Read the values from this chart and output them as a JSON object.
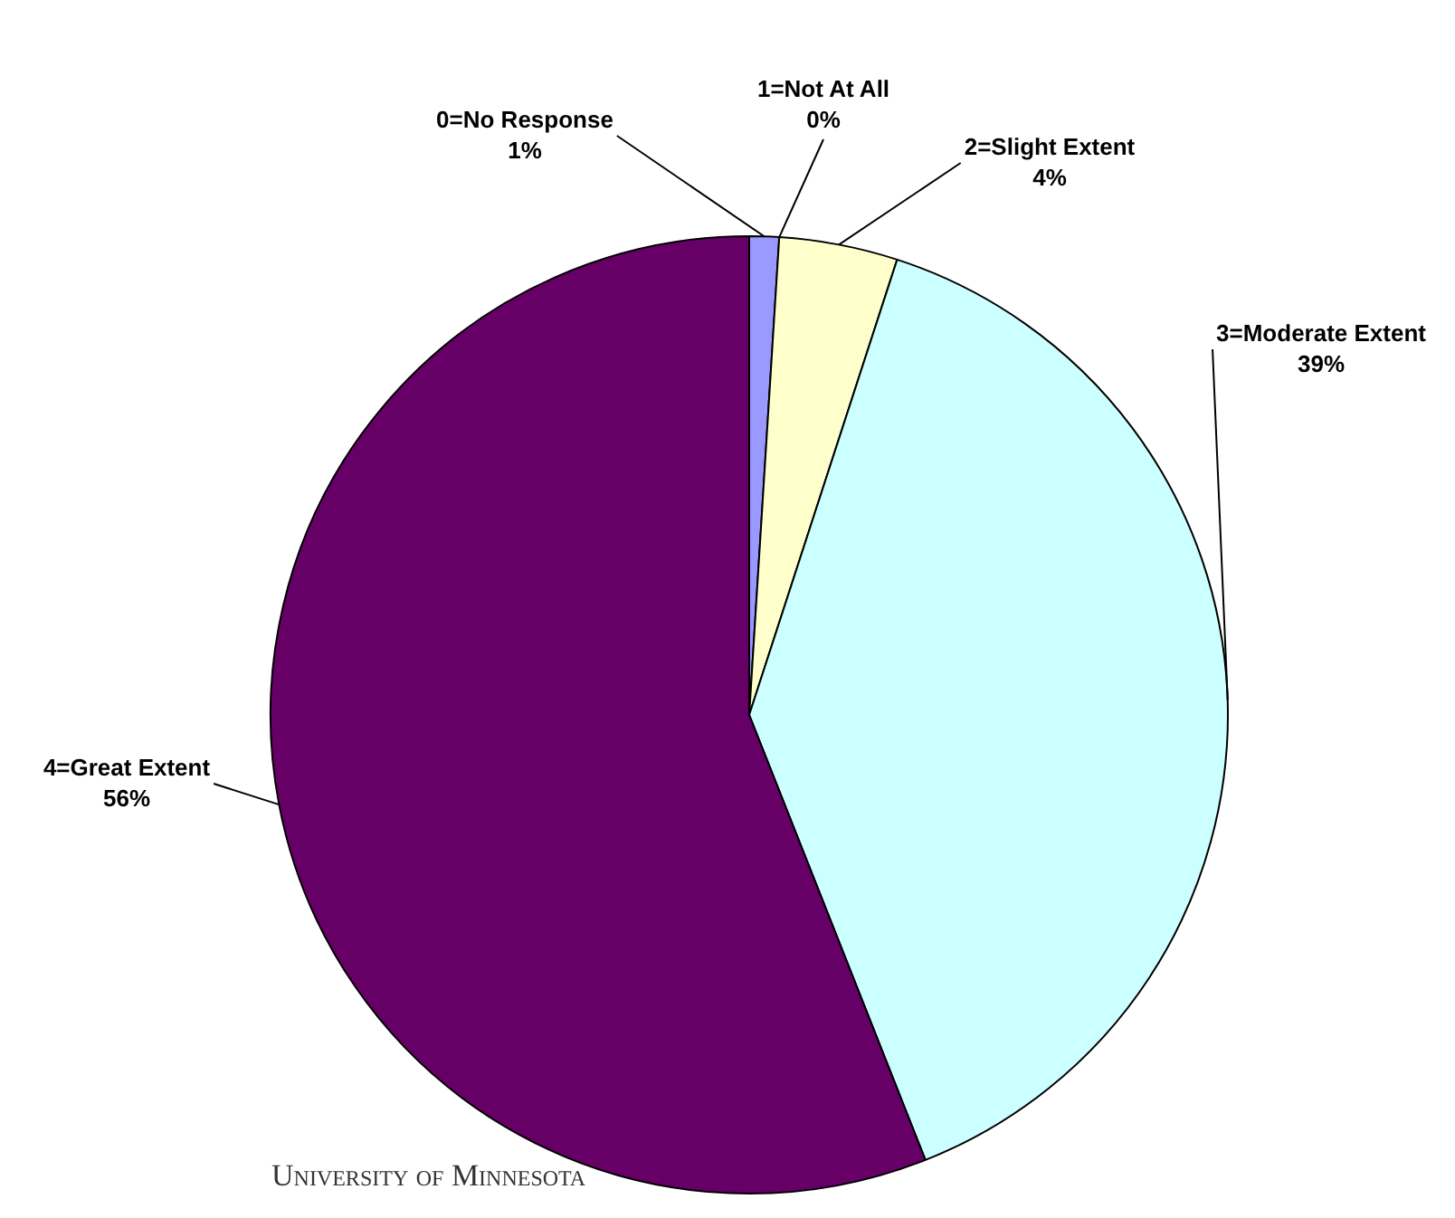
{
  "chart_data": {
    "type": "pie",
    "categories": [
      "0=No Response",
      "1=Not At All",
      "2=Slight Extent",
      "3=Moderate Extent",
      "4=Great Extent"
    ],
    "values": [
      1,
      0,
      4,
      39,
      56
    ],
    "colors": [
      "#9999ff",
      "#993366",
      "#ffffcc",
      "#ccffff",
      "#660066"
    ],
    "value_labels": [
      "1%",
      "0%",
      "4%",
      "39%",
      "56%"
    ],
    "legend": false,
    "annotations": [
      "University of Minnesota"
    ]
  }
}
